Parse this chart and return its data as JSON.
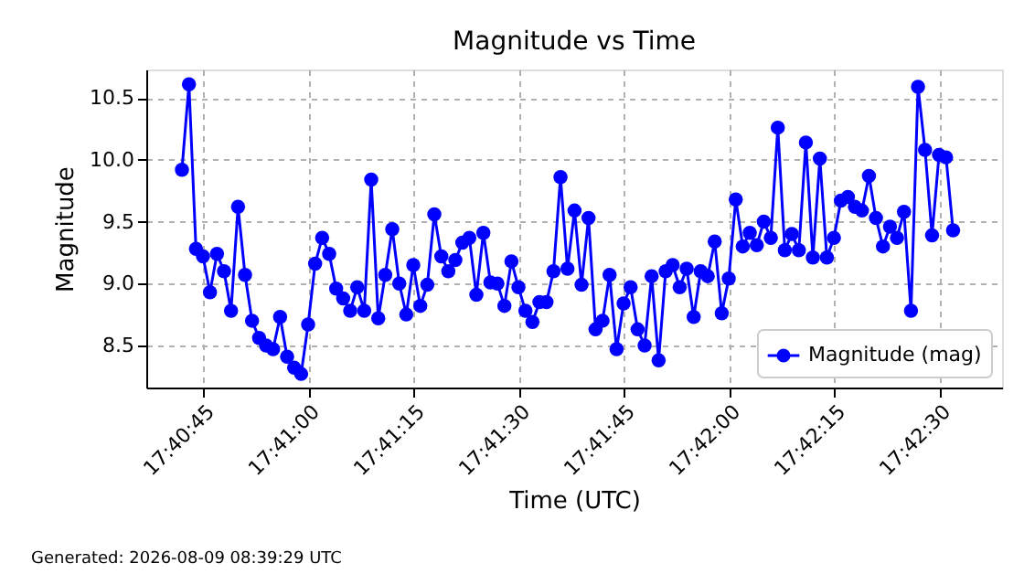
{
  "chart_data": {
    "type": "line",
    "title": "Magnitude vs Time",
    "xlabel": "Time (UTC)",
    "ylabel": "Magnitude",
    "annotations": [
      "Generated: 2026-08-09 08:39:29 UTC"
    ],
    "xlim": [
      17.67692,
      17.71083
    ],
    "ylim": [
      8.16,
      10.73
    ],
    "xticks": [
      {
        "value": 17.679167,
        "label": "17:40:45"
      },
      {
        "value": 17.683333,
        "label": "17:41:00"
      },
      {
        "value": 17.6875,
        "label": "17:41:15"
      },
      {
        "value": 17.691667,
        "label": "17:41:30"
      },
      {
        "value": 17.695833,
        "label": "17:41:45"
      },
      {
        "value": 17.7,
        "label": "17:42:00"
      },
      {
        "value": 17.704167,
        "label": "17:42:15"
      },
      {
        "value": 17.708333,
        "label": "17:42:30"
      }
    ],
    "yticks": [
      8.5,
      {
        "value": 9,
        "label": "9.0"
      },
      9.5,
      {
        "value": 10,
        "label": "10.0"
      },
      10.5
    ],
    "grid": true,
    "legend": "bottom right",
    "marker": "circle",
    "line_style": "solid",
    "series": [
      {
        "name": "Magnitude (mag)",
        "color": "#0000ff",
        "x": [
          17.678333,
          17.678611,
          17.678889,
          17.679167,
          17.679444,
          17.679722,
          17.68,
          17.680278,
          17.680556,
          17.680833,
          17.681111,
          17.681389,
          17.681667,
          17.681944,
          17.682222,
          17.6825,
          17.682778,
          17.683056,
          17.683333,
          17.683611,
          17.683889,
          17.684167,
          17.684444,
          17.684722,
          17.685,
          17.685278,
          17.685556,
          17.685833,
          17.686111,
          17.686389,
          17.686667,
          17.686944,
          17.687222,
          17.6875,
          17.687778,
          17.688056,
          17.688333,
          17.688611,
          17.688889,
          17.689167,
          17.689444,
          17.689722,
          17.69,
          17.690278,
          17.690556,
          17.690833,
          17.691111,
          17.691389,
          17.691667,
          17.691944,
          17.692222,
          17.6925,
          17.692778,
          17.693056,
          17.693333,
          17.693611,
          17.693889,
          17.694167,
          17.694444,
          17.694722,
          17.695,
          17.695278,
          17.695556,
          17.695833,
          17.696111,
          17.696389,
          17.696667,
          17.696944,
          17.697222,
          17.6975,
          17.697778,
          17.698056,
          17.698333,
          17.698611,
          17.698889,
          17.699167,
          17.699444,
          17.699722,
          17.7,
          17.700278,
          17.700556,
          17.700833,
          17.701111,
          17.701389,
          17.701667,
          17.701944,
          17.702222,
          17.7025,
          17.702778,
          17.703056,
          17.703333,
          17.703611,
          17.703889,
          17.704167,
          17.704444,
          17.704722,
          17.705,
          17.705278,
          17.705556,
          17.705833,
          17.706111,
          17.706389,
          17.706667,
          17.706944,
          17.707222,
          17.7075,
          17.707778,
          17.708056,
          17.708333,
          17.708611,
          17.708889
        ],
        "values": [
          9.92,
          10.61,
          9.28,
          9.22,
          8.93,
          9.24,
          9.1,
          8.78,
          9.62,
          9.07,
          8.7,
          8.56,
          8.5,
          8.47,
          8.73,
          8.41,
          8.32,
          8.27,
          8.67,
          9.16,
          9.37,
          9.24,
          8.96,
          8.88,
          8.78,
          8.97,
          8.78,
          9.84,
          8.72,
          9.07,
          9.44,
          9.0,
          8.75,
          9.15,
          8.82,
          8.99,
          9.56,
          9.22,
          9.1,
          9.19,
          9.33,
          9.37,
          8.91,
          9.41,
          9.01,
          9.0,
          8.82,
          9.18,
          8.97,
          8.78,
          8.69,
          8.85,
          8.85,
          9.1,
          9.86,
          9.12,
          9.59,
          8.99,
          9.53,
          8.63,
          8.7,
          9.07,
          8.47,
          8.84,
          8.97,
          8.63,
          8.5,
          9.06,
          8.38,
          9.1,
          9.15,
          8.97,
          9.12,
          8.73,
          9.1,
          9.06,
          9.34,
          8.76,
          9.04,
          9.68,
          9.3,
          9.41,
          9.31,
          9.5,
          9.37,
          10.26,
          9.27,
          9.4,
          9.27,
          10.14,
          9.21,
          10.01,
          9.21,
          9.37,
          9.67,
          9.7,
          9.62,
          9.59,
          9.87,
          9.53,
          9.3,
          9.46,
          9.37,
          9.58,
          8.78,
          10.59,
          10.08,
          9.39,
          10.04,
          10.02,
          9.43
        ]
      }
    ]
  }
}
